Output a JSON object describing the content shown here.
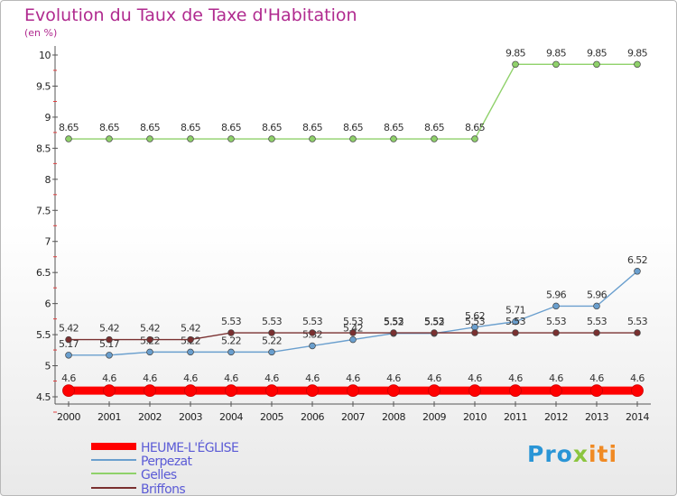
{
  "chart_data": {
    "type": "line",
    "title": "Evolution du Taux de Taxe d'Habitation",
    "subtitle": "(en %)",
    "x": [
      "2000",
      "2001",
      "2002",
      "2003",
      "2004",
      "2005",
      "2006",
      "2007",
      "2008",
      "2009",
      "2010",
      "2011",
      "2012",
      "2013",
      "2014"
    ],
    "ylim": [
      4.5,
      10
    ],
    "yticks": [
      "4.5",
      "5",
      "5.5",
      "6",
      "6.5",
      "7",
      "7.5",
      "8",
      "8.5",
      "9",
      "9.5",
      "10"
    ],
    "grid": false,
    "legend_position": "bottom-left",
    "series": [
      {
        "name": "HEUME-L'ÉGLISE",
        "color": "#ff0000",
        "values": [
          4.6,
          4.6,
          4.6,
          4.6,
          4.6,
          4.6,
          4.6,
          4.6,
          4.6,
          4.6,
          4.6,
          4.6,
          4.6,
          4.6,
          4.6
        ],
        "labels": [
          "4.6",
          "4.6",
          "4.6",
          "4.6",
          "4.6",
          "4.6",
          "4.6",
          "4.6",
          "4.6",
          "4.6",
          "4.6",
          "4.6",
          "4.6",
          "4.6",
          "4.6"
        ]
      },
      {
        "name": "Perpezat",
        "color": "#6a9fce",
        "values": [
          5.17,
          5.17,
          5.22,
          5.22,
          5.22,
          5.22,
          5.32,
          5.42,
          5.52,
          5.52,
          5.62,
          5.71,
          5.96,
          5.96,
          6.52
        ],
        "labels": [
          "5.17",
          "5.17",
          "5.22",
          "5.22",
          "5.22",
          "5.22",
          "5.32",
          "5.42",
          "5.52",
          "5.52",
          "5.62",
          "5.71",
          "5.96",
          "5.96",
          "6.52"
        ]
      },
      {
        "name": "Gelles",
        "color": "#8fd16a",
        "values": [
          8.65,
          8.65,
          8.65,
          8.65,
          8.65,
          8.65,
          8.65,
          8.65,
          8.65,
          8.65,
          8.65,
          9.85,
          9.85,
          9.85,
          9.85
        ],
        "labels": [
          "8.65",
          "8.65",
          "8.65",
          "8.65",
          "8.65",
          "8.65",
          "8.65",
          "8.65",
          "8.65",
          "8.65",
          "8.65",
          "9.85",
          "9.85",
          "9.85",
          "9.85"
        ]
      },
      {
        "name": "Briffons",
        "color": "#7a3030",
        "values": [
          5.42,
          5.42,
          5.42,
          5.42,
          5.53,
          5.53,
          5.53,
          5.53,
          5.53,
          5.53,
          5.53,
          5.53,
          5.53,
          5.53,
          5.53
        ],
        "labels": [
          "5.42",
          "5.42",
          "5.42",
          "5.42",
          "5.53",
          "5.53",
          "5.53",
          "5.53",
          "5.53",
          "5.53",
          "5.53",
          "5.53",
          "5.53",
          "5.53",
          "5.53"
        ]
      }
    ]
  },
  "brand": {
    "part1": "Pro",
    "part2": "x",
    "part3": "iti"
  }
}
